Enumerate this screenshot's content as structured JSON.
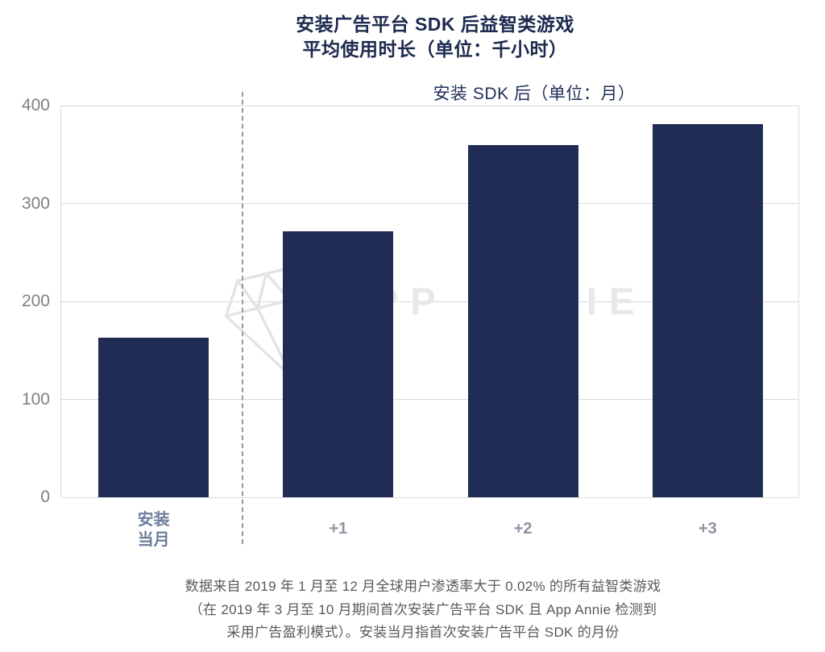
{
  "title": {
    "line1": "安装广告平台 SDK 后益智类游戏",
    "line2": "平均使用时长（单位：千小时）"
  },
  "chart_data": {
    "type": "bar",
    "title": "安装广告平台 SDK 后益智类游戏 平均使用时长（单位：千小时）",
    "subtitle": "安装 SDK 后（单位：月）",
    "categories": [
      "安装当月",
      "+1",
      "+2",
      "+3"
    ],
    "category_display_lines": [
      [
        "安装",
        "当月"
      ],
      [
        "+1"
      ],
      [
        "+2"
      ],
      [
        "+3"
      ]
    ],
    "values": [
      163,
      272,
      360,
      381
    ],
    "xlabel": "安装 SDK 后（单位：月）",
    "ylabel": "平均使用时长（千小时）",
    "ylim": [
      0,
      400
    ],
    "yticks": [
      0,
      100,
      200,
      300,
      400
    ],
    "grid": "horizontal",
    "legend": "none",
    "separator": "dashed vertical line between 安装当月 and +1",
    "bar_color": "#202c56"
  },
  "watermark": {
    "text": "APP ANNIE",
    "logo": "gem-icon"
  },
  "footnote": {
    "line1": "数据来自 2019 年 1 月至 12 月全球用户渗透率大于 0.02% 的所有益智类游戏",
    "line2": "（在 2019 年 3 月至 10 月期间首次安装广告平台 SDK 且 App Annie 检测到",
    "line3": "采用广告盈利模式）。安装当月指首次安装广告平台 SDK 的月份"
  },
  "colors": {
    "bar": "#202c56",
    "title": "#1d2a4f",
    "subtitle": "#22305a",
    "y_tick_label": "#7d8186",
    "category_first": "#6e7d9b",
    "category_rest": "#8d94a2",
    "gridline": "#d9d9db",
    "dashed_separator": "#9a9a9e",
    "footnote": "#58595b",
    "watermark": "#e8e8eb",
    "background": "#ffffff"
  }
}
